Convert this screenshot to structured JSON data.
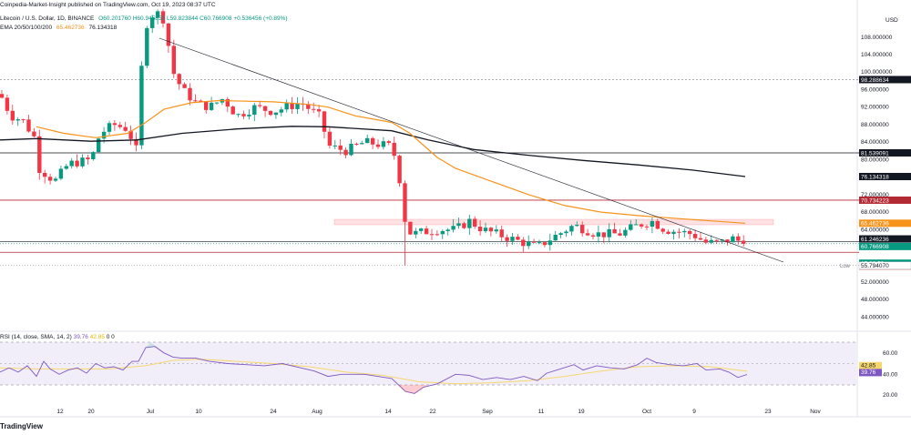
{
  "header": {
    "publisher": "Coinpedia-Market-Insight published on TradingView.com, Oct 19, 2023 08:37 UTC",
    "symbol": "Litecoin / U.S. Dollar, 1D, BINANCE",
    "ohlc": "O60.201760 H60.945850 L59.823844 C60.766908 +0.536456 (+0.89%)",
    "ema_label": "EMA 20/50/100/200",
    "ema_val1": "65.462736",
    "ema_val2": "76.134318",
    "rsi_label": "RSI (14, close, SMA, 14, 2)",
    "rsi_val1": "39.76",
    "rsi_val2": "42.85",
    "rsi_zeros": "0 0",
    "currency": "USD",
    "brand": "TradingView"
  },
  "colors": {
    "up": "#089981",
    "down": "#f23645",
    "ema50": "#f7931a",
    "ema200": "#131722",
    "rsi": "#7e57c2",
    "rsi_ma": "#f5d76e"
  },
  "chart_data": {
    "type": "candlestick",
    "y_ticks": [
      "108.000000",
      "104.000000",
      "100.000000",
      "96.000000",
      "92.000000",
      "88.000000",
      "84.000000",
      "80.000000",
      "72.000000",
      "68.000000",
      "64.000000",
      "56.000000",
      "52.000000",
      "48.000000",
      "44.000000"
    ],
    "x_ticks": [
      "12",
      "20",
      "Jul",
      "10",
      "24",
      "Aug",
      "14",
      "22",
      "Sep",
      "11",
      "19",
      "Oct",
      "9",
      "23",
      "Nov"
    ],
    "price_labels": [
      {
        "text": "98.288634",
        "kind": "line"
      },
      {
        "text": "81.539091",
        "kind": "line"
      },
      {
        "text": "76.134318",
        "kind": "ema200"
      },
      {
        "text": "70.734223",
        "kind": "res"
      },
      {
        "text": "65.462736",
        "kind": "ema50"
      },
      {
        "text": "61.246236",
        "kind": "line"
      },
      {
        "text": "60.766908",
        "kind": "last"
      },
      {
        "text": "15:22:59",
        "kind": "timer"
      },
      {
        "text": "58.805781",
        "kind": "res"
      },
      {
        "text": "55.794070",
        "kind": "low"
      }
    ],
    "low_label": "Low",
    "rsi_ticks": [
      "60.00",
      "40.00",
      "20.00"
    ],
    "rsi_labels": [
      "42.85",
      "39.76"
    ]
  }
}
